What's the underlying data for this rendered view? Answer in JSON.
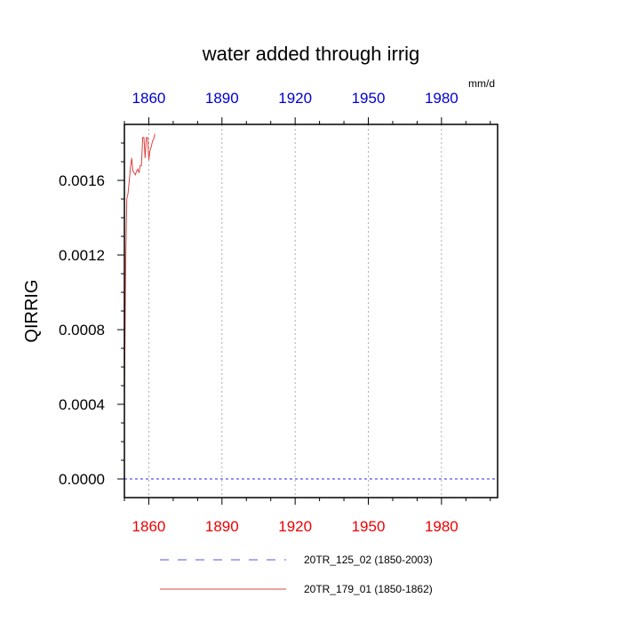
{
  "chart_data": {
    "type": "line",
    "title": "water added through irrig",
    "units": "mm/d",
    "ylabel": "QIRRIG",
    "xlabel": "",
    "xlim": [
      1850,
      2003
    ],
    "ylim": [
      -0.0001,
      0.0019
    ],
    "x_ticks": [
      1860,
      1890,
      1920,
      1950,
      1980
    ],
    "x_tick_labels": [
      "1860",
      "1890",
      "1920",
      "1950",
      "1980"
    ],
    "y_ticks": [
      0.0,
      0.0004,
      0.0008,
      0.0012,
      0.0016
    ],
    "y_tick_labels": [
      "0.0000",
      "0.0004",
      "0.0008",
      "0.0012",
      "0.0016"
    ],
    "bottom_tick_color": "#ee0000",
    "top_tick_color": "#0000cc",
    "grid": "vertical dotted at major x ticks",
    "legend_position": "bottom",
    "series": [
      {
        "name": "20TR_125_02 (1850-2003)",
        "color": "#5555ee",
        "style": "dashed",
        "x": [
          1850,
          2003
        ],
        "y": [
          0.0,
          0.0
        ]
      },
      {
        "name": "20TR_179_01 (1850-1862)",
        "color": "#e04040",
        "style": "solid",
        "x": [
          1850.0,
          1850.6,
          1851.0,
          1851.5,
          1852.0,
          1852.5,
          1853.0,
          1853.5,
          1854.0,
          1854.5,
          1855.0,
          1855.5,
          1856.0,
          1856.5,
          1857.0,
          1857.5,
          1858.0,
          1858.5,
          1859.0,
          1859.5,
          1860.0,
          1860.5,
          1861.0,
          1861.5,
          1862.0,
          1862.5
        ],
        "y": [
          0.00045,
          0.0012,
          0.0015,
          0.00153,
          0.0016,
          0.00167,
          0.00172,
          0.00165,
          0.00164,
          0.00163,
          0.00165,
          0.00166,
          0.00164,
          0.00168,
          0.00168,
          0.00183,
          0.00183,
          0.00172,
          0.00183,
          0.00183,
          0.00171,
          0.00176,
          0.00178,
          0.00181,
          0.00182,
          0.00185
        ]
      }
    ]
  }
}
